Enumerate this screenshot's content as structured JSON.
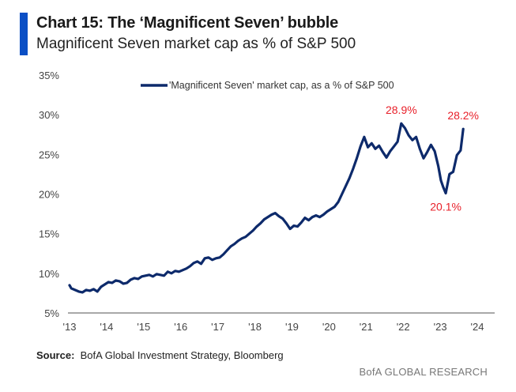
{
  "header": {
    "title": "Chart 15: The ‘Magnificent Seven’ bubble",
    "subtitle": "Magnificent Seven market cap as % of S&P 500"
  },
  "footer": {
    "source_label": "Source:",
    "source_text": "BofA Global Investment Strategy, Bloomberg",
    "brand": "BofA GLOBAL RESEARCH"
  },
  "colors": {
    "accent": "#0b4fc5",
    "series": "#0d2a6b",
    "annotation": "#e8202a"
  },
  "chart_data": {
    "type": "line",
    "title": "Magnificent Seven market cap as % of S&P 500",
    "xlabel": "",
    "ylabel": "",
    "xlim": [
      2013,
      2024
    ],
    "ylim": [
      5,
      35
    ],
    "grid": false,
    "legend": {
      "position": "top-center",
      "entries": [
        "'Magnificent Seven' market cap, as a % of S&P 500"
      ]
    },
    "x_ticks": [
      2013,
      2014,
      2015,
      2016,
      2017,
      2018,
      2019,
      2020,
      2021,
      2022,
      2023,
      2024
    ],
    "x_tick_labels": [
      "'13",
      "'14",
      "'15",
      "'16",
      "'17",
      "'18",
      "'19",
      "'20",
      "'21",
      "'22",
      "'23",
      "'24"
    ],
    "y_ticks": [
      5,
      10,
      15,
      20,
      25,
      30,
      35
    ],
    "y_tick_labels": [
      "5%",
      "10%",
      "15%",
      "20%",
      "25%",
      "30%",
      "35%"
    ],
    "series": [
      {
        "name": "'Magnificent Seven' market cap, as a % of S&P 500",
        "x": [
          2013.0,
          2013.05,
          2013.15,
          2013.25,
          2013.35,
          2013.45,
          2013.55,
          2013.65,
          2013.75,
          2013.85,
          2013.95,
          2014.05,
          2014.15,
          2014.25,
          2014.35,
          2014.45,
          2014.55,
          2014.65,
          2014.75,
          2014.85,
          2014.95,
          2015.05,
          2015.15,
          2015.25,
          2015.35,
          2015.45,
          2015.55,
          2015.65,
          2015.75,
          2015.85,
          2015.95,
          2016.05,
          2016.15,
          2016.25,
          2016.35,
          2016.45,
          2016.55,
          2016.65,
          2016.75,
          2016.85,
          2016.95,
          2017.05,
          2017.15,
          2017.25,
          2017.35,
          2017.45,
          2017.55,
          2017.65,
          2017.75,
          2017.85,
          2017.95,
          2018.05,
          2018.15,
          2018.25,
          2018.35,
          2018.45,
          2018.55,
          2018.65,
          2018.75,
          2018.85,
          2018.95,
          2019.05,
          2019.15,
          2019.25,
          2019.35,
          2019.45,
          2019.55,
          2019.65,
          2019.75,
          2019.85,
          2019.95,
          2020.05,
          2020.15,
          2020.25,
          2020.35,
          2020.45,
          2020.55,
          2020.65,
          2020.75,
          2020.85,
          2020.95,
          2021.05,
          2021.15,
          2021.25,
          2021.35,
          2021.45,
          2021.55,
          2021.65,
          2021.75,
          2021.85,
          2021.95,
          2022.05,
          2022.15,
          2022.25,
          2022.35,
          2022.45,
          2022.55,
          2022.65,
          2022.75,
          2022.85,
          2022.95,
          2023.02,
          2023.08,
          2023.15,
          2023.25,
          2023.35,
          2023.45,
          2023.55,
          2023.62
        ],
        "values": [
          8.5,
          8.1,
          7.9,
          7.7,
          7.6,
          7.9,
          7.8,
          8.0,
          7.7,
          8.3,
          8.6,
          8.9,
          8.8,
          9.1,
          9.0,
          8.7,
          8.8,
          9.2,
          9.4,
          9.3,
          9.6,
          9.7,
          9.8,
          9.6,
          9.9,
          9.8,
          9.7,
          10.2,
          10.0,
          10.3,
          10.2,
          10.4,
          10.6,
          10.9,
          11.3,
          11.5,
          11.2,
          11.9,
          12.0,
          11.7,
          11.9,
          12.0,
          12.4,
          12.9,
          13.4,
          13.7,
          14.1,
          14.4,
          14.6,
          15.0,
          15.4,
          15.9,
          16.3,
          16.8,
          17.1,
          17.4,
          17.6,
          17.2,
          16.9,
          16.3,
          15.6,
          16.0,
          15.9,
          16.4,
          17.0,
          16.7,
          17.1,
          17.3,
          17.1,
          17.4,
          17.8,
          18.1,
          18.4,
          19.0,
          20.0,
          21.0,
          22.0,
          23.2,
          24.5,
          26.0,
          27.2,
          25.9,
          26.4,
          25.7,
          26.1,
          25.3,
          24.6,
          25.4,
          26.0,
          26.6,
          28.9,
          28.3,
          27.4,
          26.8,
          27.2,
          25.7,
          24.5,
          25.3,
          26.2,
          25.4,
          23.5,
          21.7,
          20.9,
          20.1,
          22.5,
          22.8,
          24.9,
          25.5,
          28.2
        ]
      }
    ],
    "annotations": [
      {
        "text": "28.9%",
        "x": 2021.95,
        "y": 28.9,
        "placement": "above"
      },
      {
        "text": "28.2%",
        "x": 2023.62,
        "y": 28.2,
        "placement": "above"
      },
      {
        "text": "20.1%",
        "x": 2023.15,
        "y": 20.1,
        "placement": "below"
      }
    ]
  }
}
